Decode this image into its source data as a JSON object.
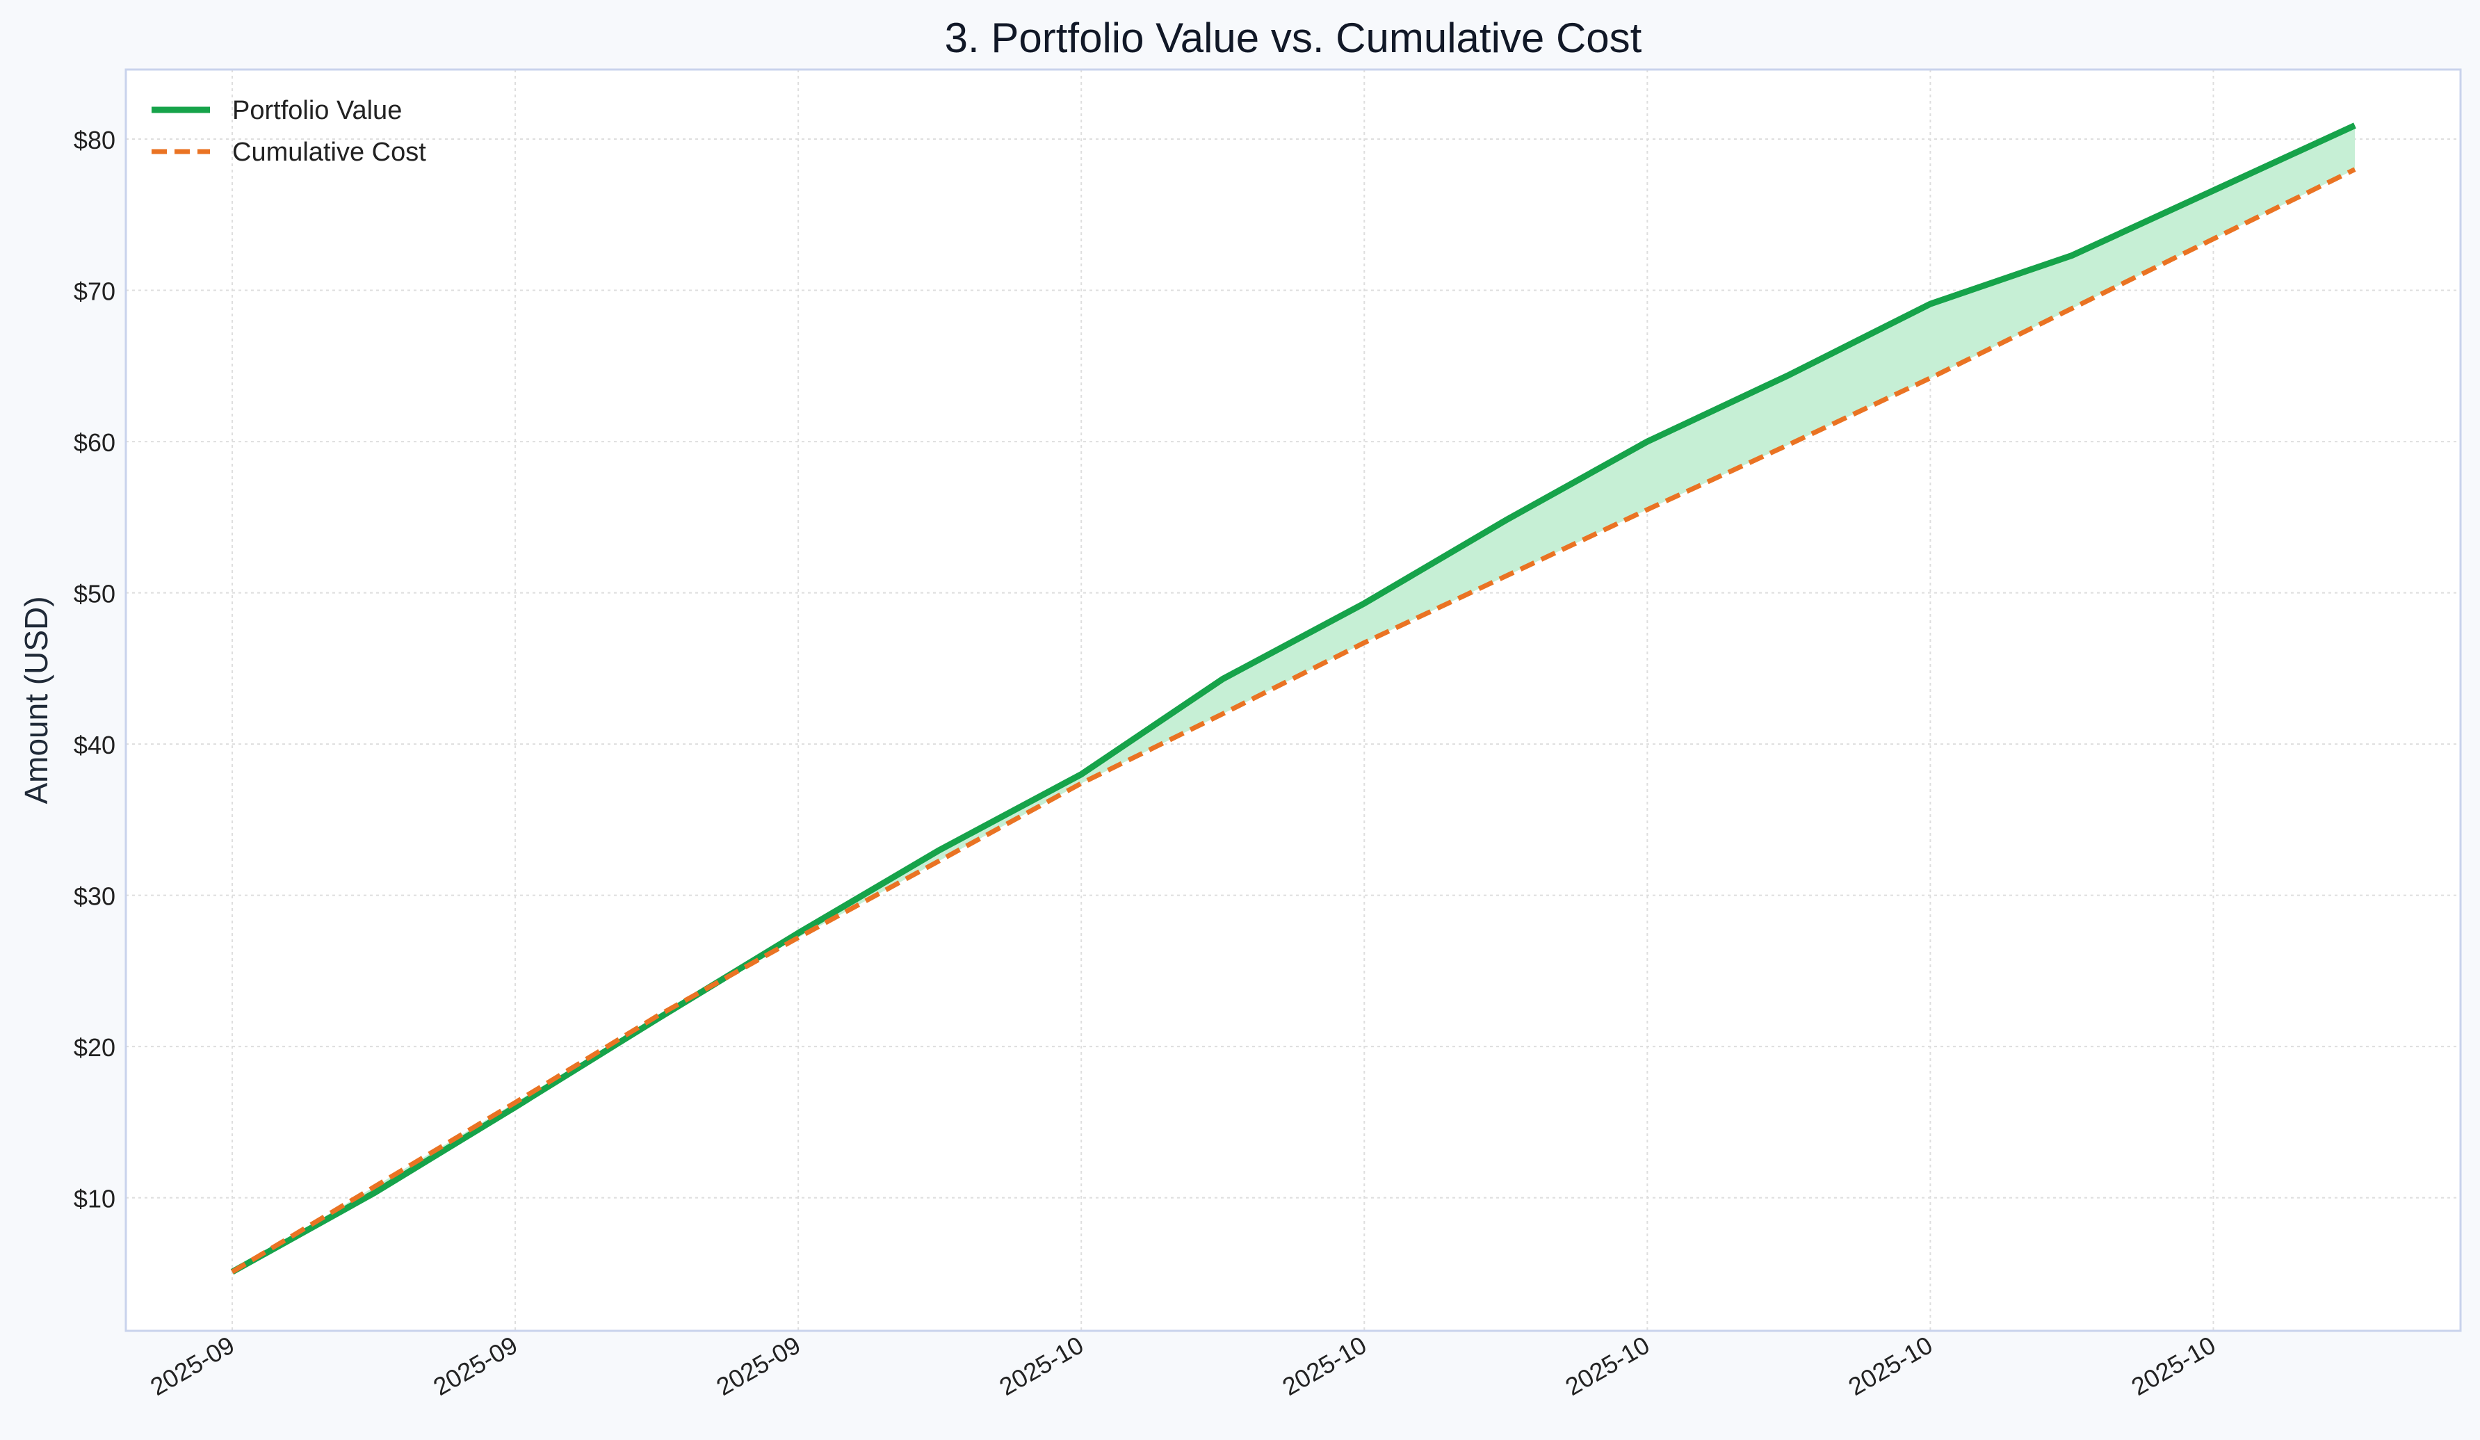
{
  "chart_data": {
    "type": "line",
    "title": "3. Portfolio Value vs. Cumulative Cost",
    "xlabel": "",
    "ylabel": "Amount (USD)",
    "x_tick_labels": [
      "2025-09",
      "2025-09",
      "2025-09",
      "2025-10",
      "2025-10",
      "2025-10",
      "2025-10",
      "2025-10"
    ],
    "ylim": [
      1.2,
      84.6
    ],
    "y_ticks": [
      10,
      20,
      30,
      40,
      50,
      60,
      70,
      80
    ],
    "y_tick_format": "$",
    "grid": true,
    "legend_position": "top-left",
    "shaded_region": "between Portfolio Value and Cumulative Cost",
    "x": [
      "2025-09-01",
      "2025-09-06",
      "2025-09-11",
      "2025-09-16",
      "2025-09-21",
      "2025-09-26",
      "2025-10-01",
      "2025-10-06",
      "2025-10-11",
      "2025-10-16",
      "2025-10-21",
      "2025-10-26",
      "2025-10-31",
      "2025-11-05",
      "2025-11-10",
      "2025-11-15"
    ],
    "series": [
      {
        "name": "Portfolio Value",
        "color": "#16a34a",
        "style": "solid",
        "values": [
          5.1,
          10.3,
          16.0,
          21.8,
          27.5,
          33.0,
          38.0,
          44.3,
          49.3,
          54.8,
          60.0,
          64.4,
          69.1,
          72.3,
          76.6,
          80.9
        ]
      },
      {
        "name": "Cumulative Cost",
        "color": "#ea7323",
        "style": "dashed",
        "values": [
          5.1,
          10.7,
          16.3,
          22.0,
          27.2,
          32.3,
          37.4,
          42.0,
          46.7,
          51.1,
          55.5,
          59.8,
          64.2,
          68.8,
          73.4,
          78.0
        ]
      }
    ],
    "fill_color": "#c6efd5",
    "frame_color": "#c9d3ec"
  }
}
